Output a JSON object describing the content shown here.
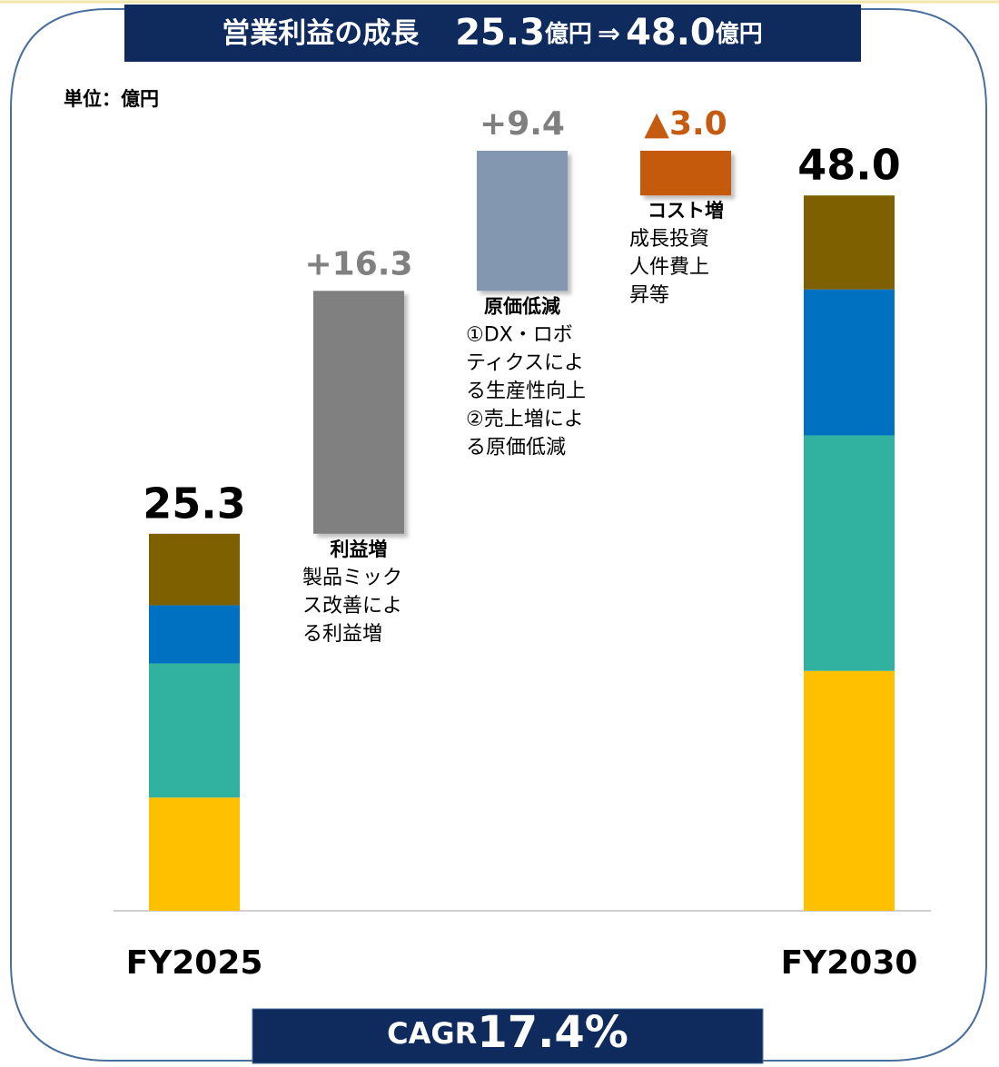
{
  "chart_data": {
    "type": "waterfall",
    "title": {
      "text": "営業利益の成長",
      "from": "25.3",
      "from_unit": "億円",
      "arrow": "⇒",
      "to": "48.0",
      "to_unit": "億円"
    },
    "unit_label": "単位：億円",
    "categories": [
      "FY2025",
      "FY2030"
    ],
    "series": [
      {
        "color": "#ffc000",
        "values": [
          7.6,
          16.1
        ]
      },
      {
        "color": "#31b1a0",
        "values": [
          9.0,
          15.8
        ]
      },
      {
        "color": "#0070c0",
        "values": [
          3.9,
          9.8
        ]
      },
      {
        "color": "#7f6000",
        "values": [
          4.8,
          6.3
        ]
      }
    ],
    "totals": [
      25.3,
      48.0
    ],
    "total_value_labels": [
      "25.3",
      "48.0"
    ],
    "steps": [
      {
        "value": 16.3,
        "value_label": "+16.3",
        "color": "#808080",
        "label_color": "#808080",
        "label": "利益増",
        "notes": [
          "製品ミック",
          "ス改善によ",
          "る利益増"
        ]
      },
      {
        "value": 9.4,
        "value_label": "+9.4",
        "color": "#8497b0",
        "label_color": "#7f7f7f",
        "label": "原価低減",
        "notes": [
          "①DX・ロボ",
          "ティクスによ",
          "る生産性向上",
          "②売上増によ",
          "る原価低減"
        ]
      },
      {
        "value": -3.0,
        "value_label": "▲3.0",
        "color": "#c55a11",
        "label_color": "#c55a11",
        "label": "コスト増",
        "notes": [
          "成長投資",
          "人件費上",
          "昇等"
        ]
      }
    ],
    "cagr": {
      "label": "CAGR",
      "value": "17.4%"
    }
  }
}
